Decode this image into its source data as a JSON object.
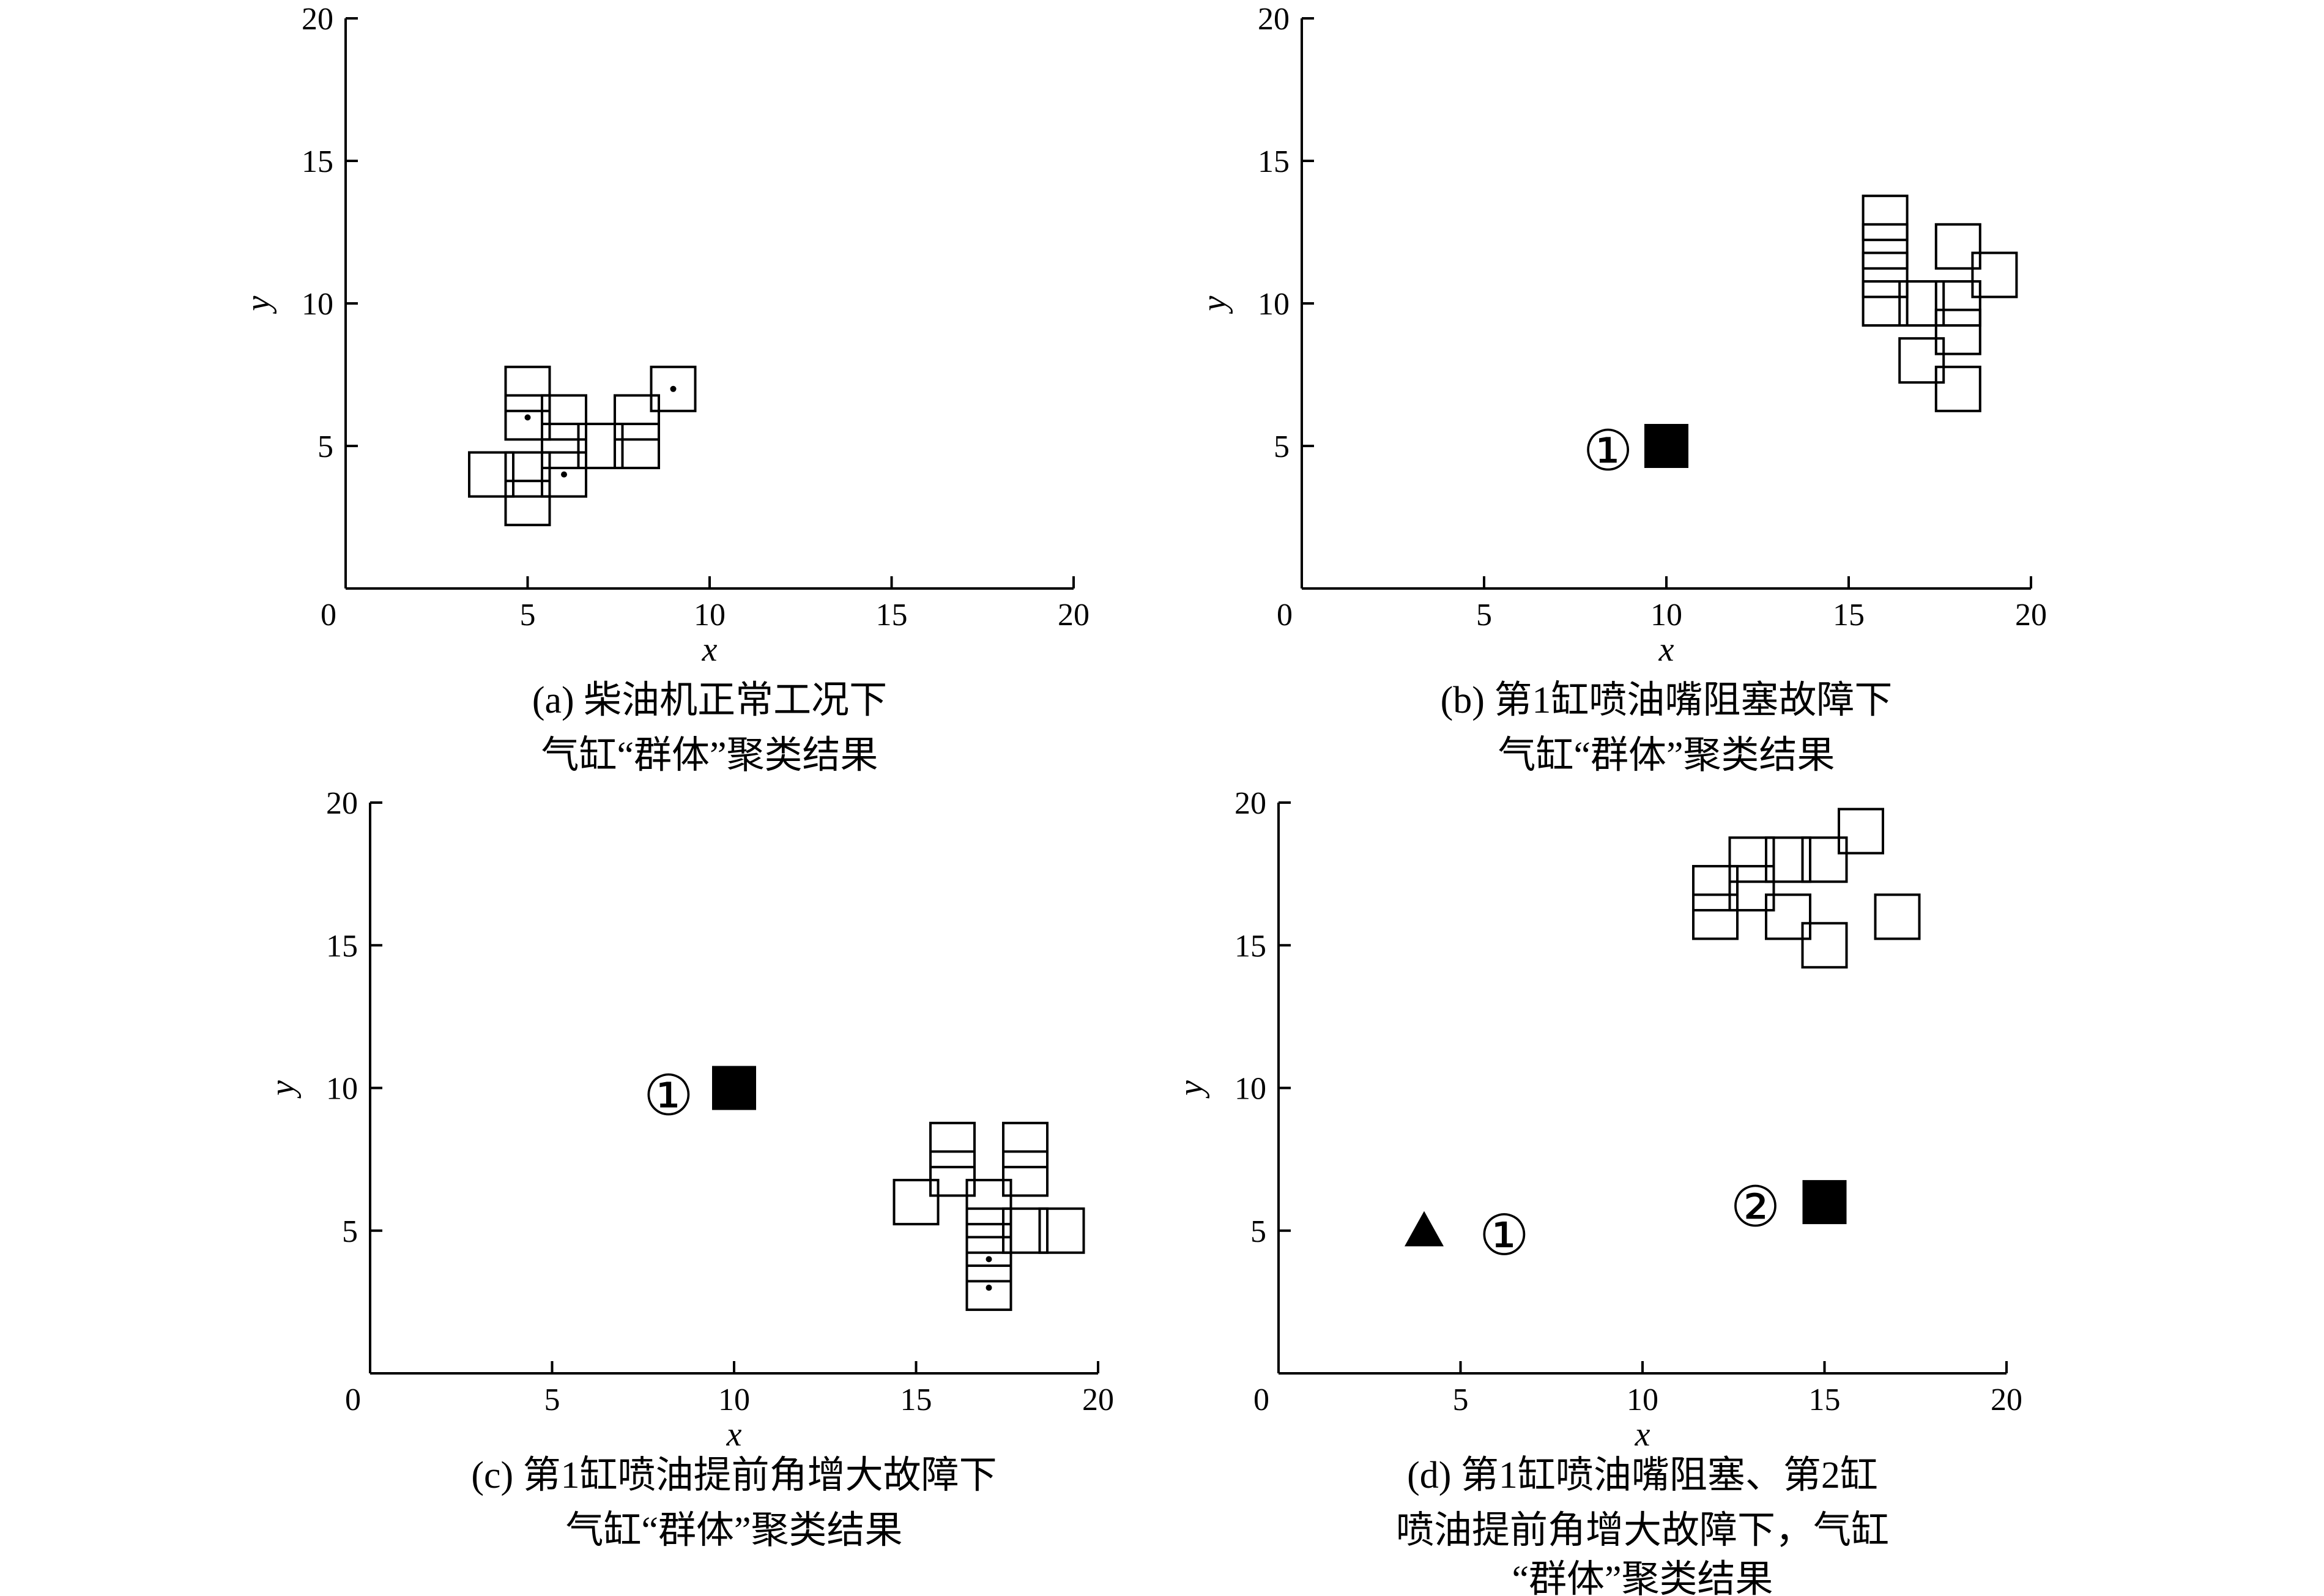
{
  "chart_data": [
    {
      "type": "scatter",
      "xlabel": "x",
      "ylabel": "y",
      "xlim": [
        0,
        20
      ],
      "ylim": [
        0,
        20
      ],
      "xticks": [
        "0",
        "5",
        "10",
        "15",
        "20"
      ],
      "yticks": [
        "5",
        "10",
        "15",
        "20"
      ],
      "caption_lines": [
        "(a) 柴油机正常工况下",
        "气缸“群体”聚类结果"
      ],
      "points": [
        {
          "x": 4,
          "y": 4,
          "marker": "square-open"
        },
        {
          "x": 5,
          "y": 7,
          "marker": "square-open"
        },
        {
          "x": 5,
          "y": 6,
          "marker": "square-dot"
        },
        {
          "x": 5,
          "y": 4,
          "marker": "square-open"
        },
        {
          "x": 5,
          "y": 3,
          "marker": "square-open"
        },
        {
          "x": 6,
          "y": 6,
          "marker": "square-open"
        },
        {
          "x": 6,
          "y": 5,
          "marker": "square-open"
        },
        {
          "x": 6,
          "y": 4,
          "marker": "square-dot"
        },
        {
          "x": 7,
          "y": 5,
          "marker": "square-open"
        },
        {
          "x": 8,
          "y": 6,
          "marker": "square-open"
        },
        {
          "x": 8,
          "y": 5,
          "marker": "square-open"
        },
        {
          "x": 9,
          "y": 7,
          "marker": "square-dot"
        }
      ],
      "annotations": []
    },
    {
      "type": "scatter",
      "xlabel": "x",
      "ylabel": "y",
      "xlim": [
        0,
        20
      ],
      "ylim": [
        0,
        20
      ],
      "xticks": [
        "0",
        "5",
        "10",
        "15",
        "20"
      ],
      "yticks": [
        "5",
        "10",
        "15",
        "20"
      ],
      "caption_lines": [
        "(b) 第1缸喷油嘴阻塞故障下",
        "气缸“群体”聚类结果"
      ],
      "points": [
        {
          "x": 10,
          "y": 5,
          "marker": "square-filled"
        },
        {
          "x": 16,
          "y": 13,
          "marker": "square-open"
        },
        {
          "x": 16,
          "y": 12,
          "marker": "square-open"
        },
        {
          "x": 16,
          "y": 11,
          "marker": "square-open"
        },
        {
          "x": 16,
          "y": 10,
          "marker": "square-open"
        },
        {
          "x": 17,
          "y": 10,
          "marker": "square-open"
        },
        {
          "x": 17,
          "y": 8,
          "marker": "square-open"
        },
        {
          "x": 18,
          "y": 12,
          "marker": "square-open"
        },
        {
          "x": 18,
          "y": 10,
          "marker": "square-open"
        },
        {
          "x": 18,
          "y": 9,
          "marker": "square-open"
        },
        {
          "x": 18,
          "y": 7,
          "marker": "square-open"
        },
        {
          "x": 19,
          "y": 11,
          "marker": "square-open"
        }
      ],
      "annotations": [
        {
          "text": "①",
          "x": 8.4,
          "y": 4.8
        }
      ]
    },
    {
      "type": "scatter",
      "xlabel": "x",
      "ylabel": "y",
      "xlim": [
        0,
        20
      ],
      "ylim": [
        0,
        20
      ],
      "xticks": [
        "0",
        "5",
        "10",
        "15",
        "20"
      ],
      "yticks": [
        "5",
        "10",
        "15",
        "20"
      ],
      "caption_lines": [
        "(c) 第1缸喷油提前角增大故障下",
        "气缸“群体”聚类结果"
      ],
      "points": [
        {
          "x": 10,
          "y": 10,
          "marker": "square-filled"
        },
        {
          "x": 15,
          "y": 6,
          "marker": "square-open"
        },
        {
          "x": 16,
          "y": 8,
          "marker": "square-open"
        },
        {
          "x": 16,
          "y": 7,
          "marker": "square-open"
        },
        {
          "x": 17,
          "y": 6,
          "marker": "square-open"
        },
        {
          "x": 17,
          "y": 5,
          "marker": "square-open"
        },
        {
          "x": 17,
          "y": 4,
          "marker": "square-dot"
        },
        {
          "x": 17,
          "y": 3,
          "marker": "square-dot"
        },
        {
          "x": 18,
          "y": 8,
          "marker": "square-open"
        },
        {
          "x": 18,
          "y": 7,
          "marker": "square-open"
        },
        {
          "x": 18,
          "y": 5,
          "marker": "square-open"
        },
        {
          "x": 19,
          "y": 5,
          "marker": "square-open"
        }
      ],
      "annotations": [
        {
          "text": "①",
          "x": 8.2,
          "y": 9.7
        }
      ]
    },
    {
      "type": "scatter",
      "xlabel": "x",
      "ylabel": "y",
      "xlim": [
        0,
        20
      ],
      "ylim": [
        0,
        20
      ],
      "xticks": [
        "0",
        "5",
        "10",
        "15",
        "20"
      ],
      "yticks": [
        "5",
        "10",
        "15",
        "20"
      ],
      "caption_lines": [
        "(d) 第1缸喷油嘴阻塞、第2缸",
        "喷油提前角增大故障下，气缸",
        "“群体”聚类结果"
      ],
      "points": [
        {
          "x": 4,
          "y": 5,
          "marker": "triangle-filled"
        },
        {
          "x": 15,
          "y": 6,
          "marker": "square-filled"
        },
        {
          "x": 12,
          "y": 17,
          "marker": "square-open"
        },
        {
          "x": 12,
          "y": 16,
          "marker": "square-open"
        },
        {
          "x": 13,
          "y": 18,
          "marker": "square-open"
        },
        {
          "x": 13,
          "y": 17,
          "marker": "square-open"
        },
        {
          "x": 14,
          "y": 18,
          "marker": "square-open"
        },
        {
          "x": 14,
          "y": 16,
          "marker": "square-open"
        },
        {
          "x": 15,
          "y": 18,
          "marker": "square-open"
        },
        {
          "x": 15,
          "y": 15,
          "marker": "square-open"
        },
        {
          "x": 16,
          "y": 19,
          "marker": "square-open"
        },
        {
          "x": 17,
          "y": 16,
          "marker": "square-open"
        }
      ],
      "annotations": [
        {
          "text": "①",
          "x": 6.2,
          "y": 4.8
        },
        {
          "text": "②",
          "x": 13.1,
          "y": 5.8
        }
      ]
    }
  ]
}
